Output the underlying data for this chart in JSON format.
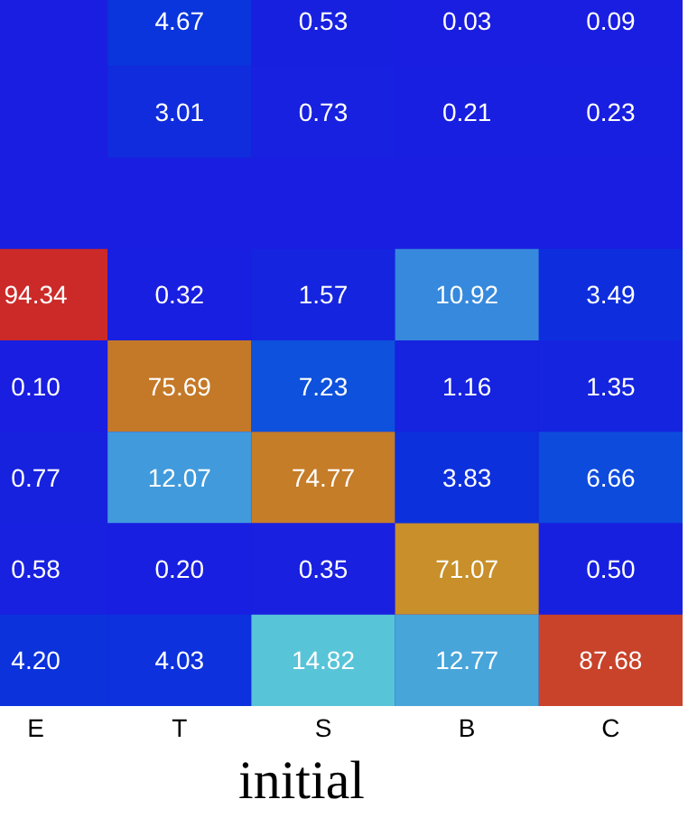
{
  "chart_data": [
    {
      "type": "heatmap",
      "categories": [
        null,
        null,
        null,
        null
      ],
      "y_categories": [
        null,
        null
      ],
      "data_labels": true,
      "cells": [
        [
          4.67,
          0.53,
          0.03,
          0.09
        ],
        [
          3.01,
          0.73,
          0.21,
          0.23
        ]
      ]
    },
    {
      "type": "heatmap",
      "xlabel": "initial",
      "categories": [
        "E",
        "T",
        "S",
        "B",
        "C"
      ],
      "y_categories": [
        null,
        null,
        null,
        null,
        null
      ],
      "cells": [
        [
          94.34,
          0.32,
          1.57,
          10.92,
          3.49
        ],
        [
          0.1,
          75.69,
          7.23,
          1.16,
          1.35
        ],
        [
          0.77,
          12.07,
          74.77,
          3.83,
          6.66
        ],
        [
          0.58,
          0.2,
          0.35,
          71.07,
          0.5
        ],
        [
          4.2,
          4.03,
          14.82,
          12.77,
          87.68
        ]
      ],
      "cell_labels": [
        [
          "94.34",
          "0.32",
          "1.57",
          "10.92",
          "3.49"
        ],
        [
          "0.10",
          "75.69",
          "7.23",
          "1.16",
          "1.35"
        ],
        [
          "0.77",
          "12.07",
          "74.77",
          "3.83",
          "6.66"
        ],
        [
          "0.58",
          "0.20",
          "0.35",
          "71.07",
          "0.50"
        ],
        [
          "4.20",
          "4.03",
          "14.82",
          "12.77",
          "87.68"
        ]
      ]
    }
  ]
}
